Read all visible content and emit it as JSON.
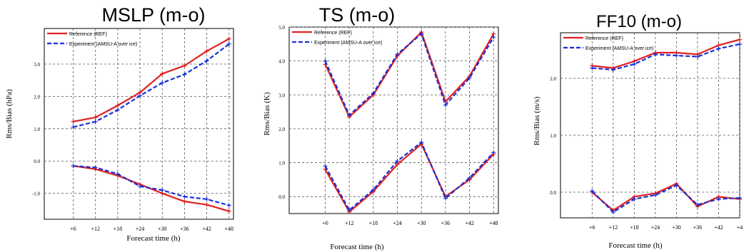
{
  "colors": {
    "ref": "#e02020",
    "exp": "#1a2fd8",
    "grid": "#555555",
    "axis": "#000000"
  },
  "legend": {
    "ref_label": "Reference (REF)",
    "exp_label": "Experiment (AMSU-A over ice)"
  },
  "chart_data": [
    {
      "type": "line",
      "title": "MSLP (m-o)",
      "xlabel": "Forecast time (h)",
      "ylabel": "Rms/Bias (hPa)",
      "categories": [
        "+6",
        "+12",
        "+18",
        "+24",
        "+30",
        "+36",
        "+42",
        "+48"
      ],
      "yticks": [
        "-1.0",
        "0.0",
        "1.0",
        "2.0",
        "3.0"
      ],
      "ytick_values": [
        -1,
        0,
        1,
        2,
        3
      ],
      "ylim": [
        -1.8,
        4.1
      ],
      "xlim": [
        -1.3,
        7.2
      ],
      "grid": true,
      "legend_position": "top-left",
      "series": [
        {
          "name": "Reference (REF)",
          "group": "rms",
          "role": "ref",
          "values": [
            1.22,
            1.35,
            1.72,
            2.12,
            2.7,
            2.95,
            3.4,
            3.78
          ]
        },
        {
          "name": "Experiment (AMSU-A over ice)",
          "group": "rms",
          "role": "exp",
          "values": [
            1.05,
            1.22,
            1.58,
            2.02,
            2.42,
            2.68,
            3.1,
            3.62
          ]
        },
        {
          "name": "Reference (REF)",
          "group": "bias",
          "role": "ref",
          "values": [
            -0.15,
            -0.25,
            -0.45,
            -0.72,
            -1.0,
            -1.25,
            -1.35,
            -1.55
          ]
        },
        {
          "name": "Experiment (AMSU-A over ice)",
          "group": "bias",
          "role": "exp",
          "values": [
            -0.15,
            -0.2,
            -0.4,
            -0.78,
            -0.9,
            -1.1,
            -1.18,
            -1.37
          ]
        }
      ]
    },
    {
      "type": "line",
      "title": "TS (m-o)",
      "xlabel": "Forecast time (h)",
      "ylabel": "Rms/Bias (K)",
      "categories": [
        "+6",
        "+12",
        "+18",
        "+24",
        "+30",
        "+36",
        "+42",
        "+48"
      ],
      "yticks": [
        "0.0",
        "1.0",
        "2.0",
        "3.0",
        "4.0",
        "5.0"
      ],
      "ytick_values": [
        0,
        1,
        2,
        3,
        4,
        5
      ],
      "ylim": [
        -0.5,
        5.0
      ],
      "xlim": [
        -1.5,
        7.2
      ],
      "grid": true,
      "legend_position": "top-left",
      "series": [
        {
          "name": "Reference (REF)",
          "group": "rms",
          "role": "ref",
          "values": [
            3.9,
            2.35,
            3.0,
            4.15,
            4.85,
            2.8,
            3.55,
            4.8
          ]
        },
        {
          "name": "Experiment (AMSU-A over ice)",
          "group": "rms",
          "role": "exp",
          "values": [
            4.0,
            2.4,
            3.05,
            4.2,
            4.8,
            2.7,
            3.5,
            4.7
          ]
        },
        {
          "name": "Reference (REF)",
          "group": "bias",
          "role": "ref",
          "values": [
            0.8,
            -0.45,
            0.15,
            0.95,
            1.55,
            0.0,
            0.5,
            1.25
          ]
        },
        {
          "name": "Experiment (AMSU-A over ice)",
          "group": "bias",
          "role": "exp",
          "values": [
            0.9,
            -0.4,
            0.2,
            1.05,
            1.6,
            -0.05,
            0.55,
            1.3
          ]
        }
      ]
    },
    {
      "type": "line",
      "title": "FF10 (m-o)",
      "xlabel": "Forecast time (h)",
      "ylabel": "Rms/Bias (m/s)",
      "categories": [
        "+6",
        "+12",
        "+18",
        "+24",
        "+30",
        "+36",
        "+42",
        "+4"
      ],
      "yticks": [
        "0.0",
        "1.0",
        "2.0"
      ],
      "ytick_values": [
        0,
        1,
        2
      ],
      "ylim": [
        -0.45,
        2.8
      ],
      "xlim": [
        -1.5,
        7.0
      ],
      "grid": true,
      "legend_position": "top-left",
      "series": [
        {
          "name": "Reference (REF)",
          "group": "rms",
          "role": "ref",
          "values": [
            2.22,
            2.18,
            2.3,
            2.45,
            2.45,
            2.42,
            2.58,
            2.68
          ]
        },
        {
          "name": "Experiment (AMSU-A over ice)",
          "group": "rms",
          "role": "exp",
          "values": [
            2.18,
            2.15,
            2.25,
            2.42,
            2.4,
            2.38,
            2.52,
            2.6
          ]
        },
        {
          "name": "Reference (REF)",
          "group": "bias",
          "role": "ref",
          "values": [
            0.0,
            -0.32,
            -0.08,
            -0.02,
            0.15,
            -0.25,
            -0.08,
            -0.12
          ]
        },
        {
          "name": "Experiment (AMSU-A over ice)",
          "group": "bias",
          "role": "exp",
          "values": [
            0.02,
            -0.35,
            -0.12,
            -0.05,
            0.12,
            -0.22,
            -0.12,
            -0.1
          ]
        }
      ]
    }
  ]
}
